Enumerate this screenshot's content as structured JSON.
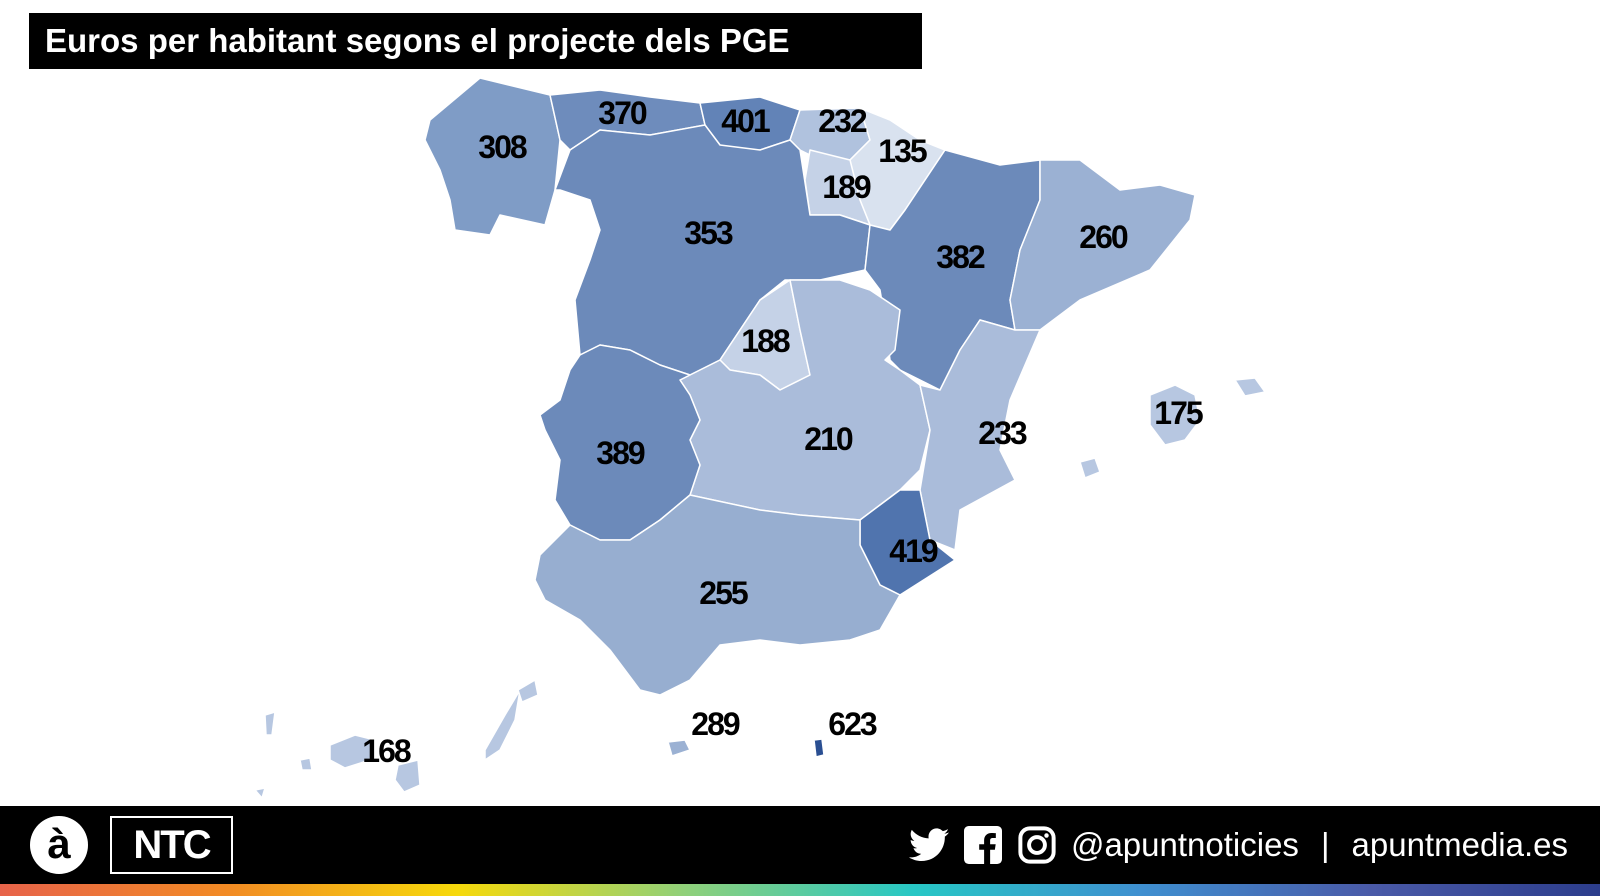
{
  "title": "Euros per habitant segons el projecte dels PGE",
  "regions": [
    {
      "name": "Galicia",
      "value": "308",
      "color": "#7f9cc6"
    },
    {
      "name": "Asturias",
      "value": "370",
      "color": "#6e8cbc"
    },
    {
      "name": "Cantabria",
      "value": "401",
      "color": "#6283b7"
    },
    {
      "name": "Pais Basc",
      "value": "232",
      "color": "#b0c2de"
    },
    {
      "name": "Navarra",
      "value": "135",
      "color": "#d9e2ef"
    },
    {
      "name": "La Rioja",
      "value": "189",
      "color": "#c5d2e7"
    },
    {
      "name": "Castella i Lleo",
      "value": "353",
      "color": "#6c8aba"
    },
    {
      "name": "Arago",
      "value": "382",
      "color": "#6c8aba"
    },
    {
      "name": "Catalunya",
      "value": "260",
      "color": "#9bb1d3"
    },
    {
      "name": "Madrid",
      "value": "188",
      "color": "#c5d2e7"
    },
    {
      "name": "Castella-la Manxa",
      "value": "210",
      "color": "#aabcda"
    },
    {
      "name": "Comunitat Valenciana",
      "value": "233",
      "color": "#aabcda"
    },
    {
      "name": "Extremadura",
      "value": "389",
      "color": "#6c8aba"
    },
    {
      "name": "Murcia",
      "value": "419",
      "color": "#5074ae"
    },
    {
      "name": "Andalusia",
      "value": "255",
      "color": "#97aed0"
    },
    {
      "name": "Balears",
      "value": "175",
      "color": "#b7c7e1"
    },
    {
      "name": "Canaries",
      "value": "168",
      "color": "#b7c7e1"
    },
    {
      "name": "Ceuta",
      "value": "289",
      "color": "#9bb1d3"
    },
    {
      "name": "Melilla",
      "value": "623",
      "color": "#2a4f92"
    }
  ],
  "footer": {
    "logo_a": "à",
    "logo_ntc": "NTC",
    "handle": "@apuntnoticies",
    "separator": "|",
    "website": "apuntmedia.es"
  }
}
